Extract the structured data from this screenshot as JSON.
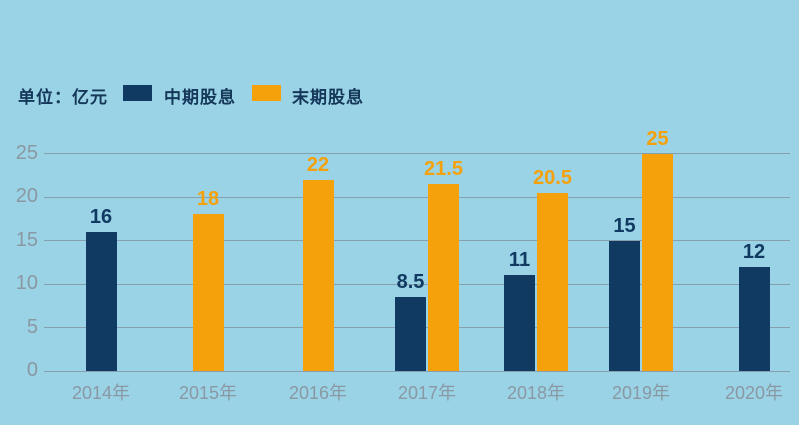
{
  "unit_label": "单位：亿元",
  "legend": [
    {
      "label": "中期股息",
      "color": "#113A62"
    },
    {
      "label": "末期股息",
      "color": "#F5A10B"
    }
  ],
  "colors": {
    "background": "#9AD3E6",
    "interim_bar": "#113A62",
    "final_bar": "#F5A10B",
    "gridline": "#87A0AE",
    "tick_label": "#8A98A3",
    "legend_text": "#14375A"
  },
  "chart_data": {
    "type": "bar",
    "title": "",
    "ylabel": "亿元",
    "xlabel": "",
    "grid": true,
    "legend_position": "top-left",
    "ylim": [
      0,
      25
    ],
    "yticks": [
      0,
      5,
      10,
      15,
      20,
      25
    ],
    "categories": [
      "2014年",
      "2015年",
      "2016年",
      "2017年",
      "2018年",
      "2019年",
      "2020年"
    ],
    "series": [
      {
        "name": "中期股息",
        "color": "#113A62",
        "values": [
          16,
          null,
          null,
          8.5,
          11,
          15,
          12
        ]
      },
      {
        "name": "末期股息",
        "color": "#F5A10B",
        "values": [
          null,
          18,
          22,
          21.5,
          20.5,
          25,
          null
        ]
      }
    ]
  }
}
